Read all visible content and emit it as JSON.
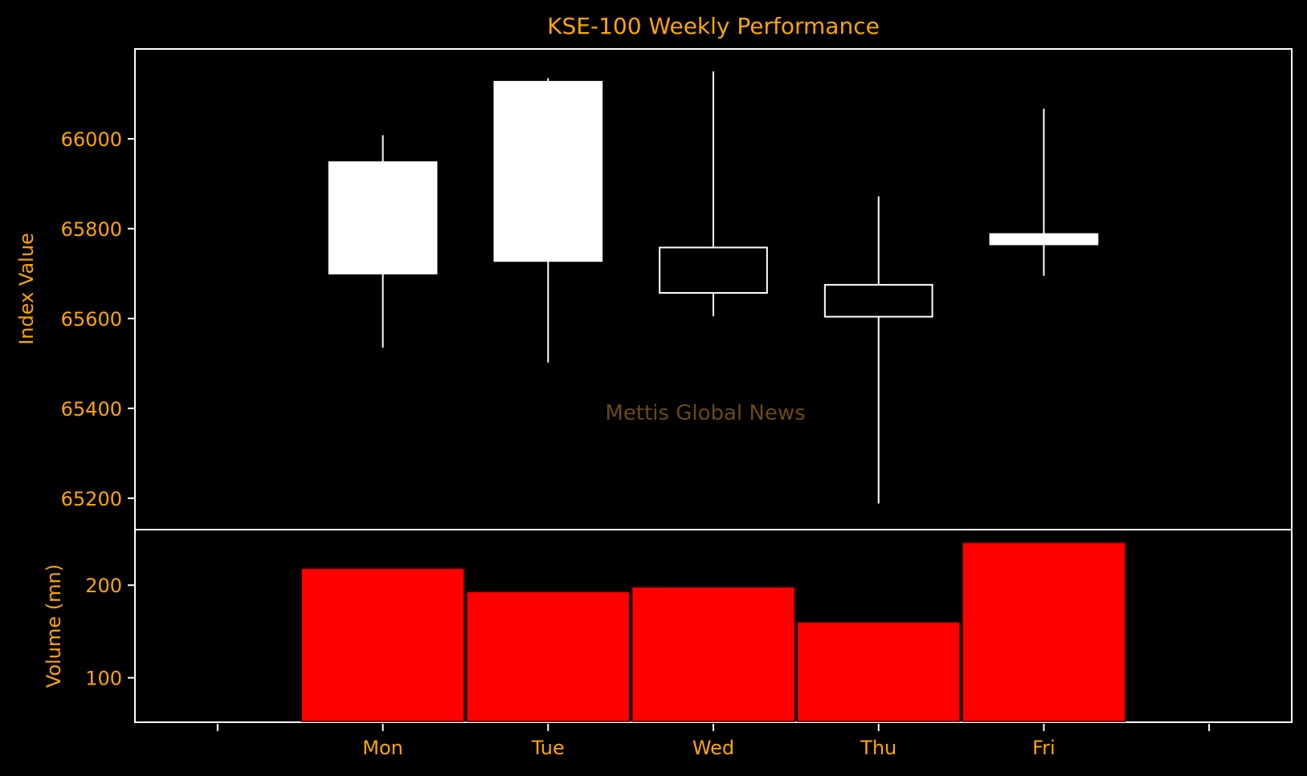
{
  "colors": {
    "background": "#000000",
    "text": "#FFA500",
    "candle": "#FFFFFF",
    "axes": "#FFFFFF",
    "volume": "#FF0000",
    "watermark": "#6B4A12"
  },
  "watermark": "Mettis Global News",
  "chart_data": [
    {
      "type": "candlestick",
      "title": "KSE-100 Weekly Performance",
      "xlabel": "",
      "ylabel": "Index Value",
      "ylim": [
        65130,
        66200
      ],
      "yticks": [
        65200,
        65400,
        65600,
        65800,
        66000
      ],
      "ytick_labels": [
        "65200",
        "65400",
        "65600",
        "65800",
        "66000"
      ],
      "grid": false,
      "categories": [
        "Mon",
        "Tue",
        "Wed",
        "Thu",
        "Fri"
      ],
      "candles": [
        {
          "day": "Mon",
          "open": 65700,
          "high": 66008,
          "low": 65535,
          "close": 65948
        },
        {
          "day": "Tue",
          "open": 65728,
          "high": 66135,
          "low": 65502,
          "close": 66127
        },
        {
          "day": "Wed",
          "open": 65758,
          "high": 66150,
          "low": 65605,
          "close": 65657
        },
        {
          "day": "Thu",
          "open": 65675,
          "high": 65872,
          "low": 65188,
          "close": 65604
        },
        {
          "day": "Fri",
          "open": 65765,
          "high": 66067,
          "low": 65695,
          "close": 65788
        }
      ]
    },
    {
      "type": "bar",
      "title": "",
      "xlabel": "",
      "ylabel": "Volume (mn)",
      "categories": [
        "Mon",
        "Tue",
        "Wed",
        "Thu",
        "Fri"
      ],
      "values": [
        218,
        193,
        198,
        160,
        246
      ],
      "ylim": [
        52,
        260
      ],
      "yticks": [
        100,
        200
      ],
      "ytick_labels": [
        "100",
        "200"
      ],
      "grid": false
    }
  ]
}
